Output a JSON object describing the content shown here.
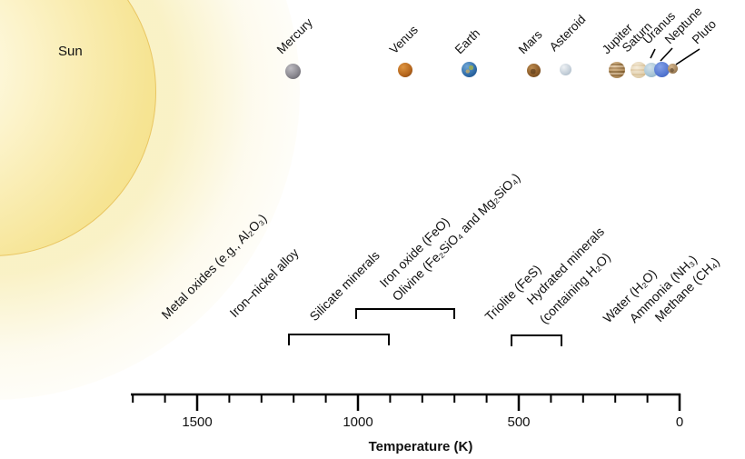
{
  "sun": {
    "label": "Sun"
  },
  "planets": [
    {
      "name": "Mercury",
      "color": "#8f8d93"
    },
    {
      "name": "Venus",
      "color": "#bf6a1f"
    },
    {
      "name": "Earth",
      "color": "#3a72a8"
    },
    {
      "name": "Mars",
      "color": "#96662e"
    },
    {
      "name": "Asteroid",
      "color": "#c6d1da"
    },
    {
      "name": "Jupiter",
      "color": "#b98a4a"
    },
    {
      "name": "Saturn",
      "color": "#e7d4ae"
    },
    {
      "name": "Uranus",
      "color": "#a9c6d6"
    },
    {
      "name": "Neptune",
      "color": "#5b7fd6"
    },
    {
      "name": "Pluto",
      "color": "#b1946f"
    }
  ],
  "materials": [
    {
      "id": "metal-oxides",
      "text": "Metal oxides (e.g., Al₂O₃)"
    },
    {
      "id": "iron-nickel",
      "text": "Iron–nickel alloy"
    },
    {
      "id": "silicate",
      "text": "Silicate minerals"
    },
    {
      "id": "iron-oxide",
      "text": "Iron oxide (FeO)"
    },
    {
      "id": "olivine",
      "text": "Olivine (Fe₂SiO₄ and Mg₂SiO₄)"
    },
    {
      "id": "triolite",
      "text": "Triolite (FeS)"
    },
    {
      "id": "hydrated-line1",
      "text": "Hydrated minerals"
    },
    {
      "id": "hydrated-line2",
      "text": "(containing H₂O)"
    },
    {
      "id": "water",
      "text": "Water (H₂O)"
    },
    {
      "id": "ammonia",
      "text": "Ammonia (NH₃)"
    },
    {
      "id": "methane",
      "text": "Methane (CH₄)"
    }
  ],
  "axis": {
    "label": "Temperature (K)",
    "max": 1700,
    "min": 0,
    "minor_step": 100,
    "major_ticks": [
      1500,
      1000,
      500,
      0
    ],
    "direction": "temperature decreases to the right"
  },
  "condensation_ranges": [
    {
      "material": "Silicate minerals",
      "from_k": 1200,
      "to_k": 900
    },
    {
      "material": "Iron oxide (FeO) / Olivine",
      "from_k": 1000,
      "to_k": 700
    },
    {
      "material": "Triolite (FeS) / Hydrated minerals",
      "from_k": 520,
      "to_k": 370
    }
  ]
}
